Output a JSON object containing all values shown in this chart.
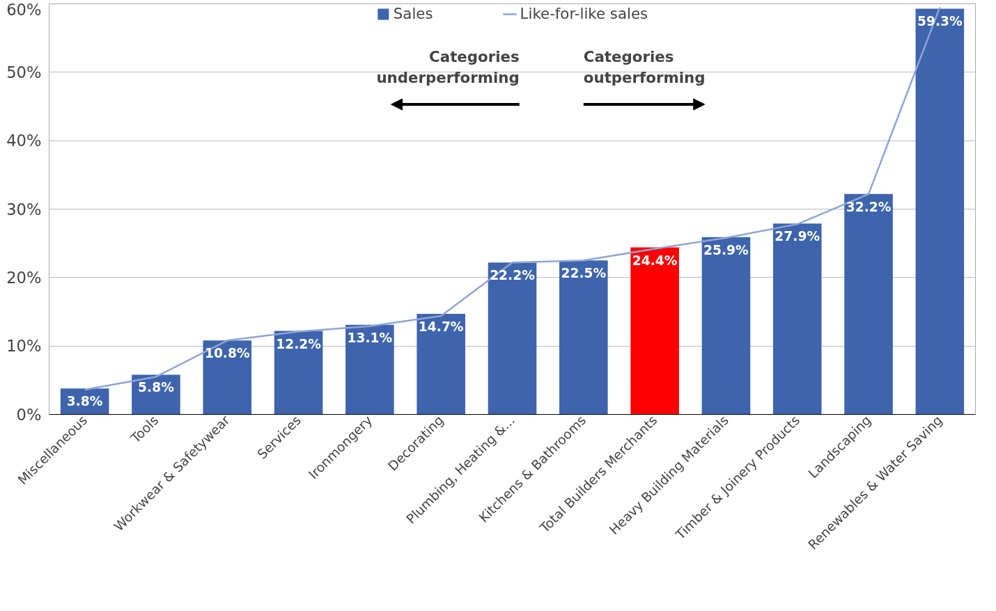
{
  "chart_data": {
    "type": "bar",
    "categories": [
      "Miscellaneous",
      "Tools",
      "Workwear & Safetywear",
      "Services",
      "Ironmongery",
      "Decorating",
      "Plumbing, Heating &...",
      "Kitchens & Bathrooms",
      "Total Builders Merchants",
      "Heavy Building Materials",
      "Timber & Joinery Products",
      "Landscaping",
      "Renewables & Water Saving"
    ],
    "series": [
      {
        "name": "Sales",
        "type": "bar",
        "color": "#3d64ad",
        "colors": [
          "#3d64ad",
          "#3d64ad",
          "#3d64ad",
          "#3d64ad",
          "#3d64ad",
          "#3d64ad",
          "#3d64ad",
          "#3d64ad",
          "#ff0000",
          "#3d64ad",
          "#3d64ad",
          "#3d64ad",
          "#3d64ad"
        ],
        "values": [
          3.8,
          5.8,
          10.8,
          12.2,
          13.1,
          14.7,
          22.2,
          22.5,
          24.4,
          25.9,
          27.9,
          32.2,
          59.3
        ],
        "value_labels": [
          "3.8%",
          "5.8%",
          "10.8%",
          "12.2%",
          "13.1%",
          "14.7%",
          "22.2%",
          "22.5%",
          "24.4%",
          "25.9%",
          "27.9%",
          "32.2%",
          "59.3%"
        ]
      },
      {
        "name": "Like-for-like sales",
        "type": "line",
        "color": "#8fa4d8",
        "values": [
          3.6,
          5.5,
          10.8,
          12.1,
          12.9,
          14.4,
          22.2,
          22.5,
          24.2,
          25.8,
          27.8,
          32.2,
          59.5
        ]
      }
    ],
    "ylim": [
      0,
      60
    ],
    "yticks": [
      {
        "value": 0,
        "label": "0%"
      },
      {
        "value": 10,
        "label": "10%"
      },
      {
        "value": 20,
        "label": "20%"
      },
      {
        "value": 30,
        "label": "30%"
      },
      {
        "value": 40,
        "label": "40%"
      },
      {
        "value": 50,
        "label": "50%"
      },
      {
        "value": 60,
        "label": "60%"
      }
    ],
    "annotations": [
      "Categories\nunderperforming",
      "Categories\noutperforming"
    ],
    "grid": "y",
    "legend": "top"
  }
}
